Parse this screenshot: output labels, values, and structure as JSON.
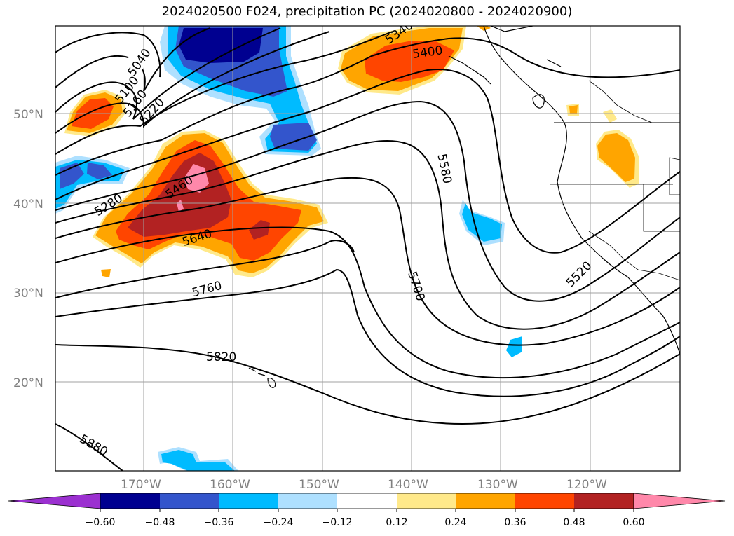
{
  "title": "2024020500 F024, precipitation PC (2024020800 - 2024020900)",
  "lat_labels": [
    "50°N",
    "40°N",
    "30°N",
    "20°N"
  ],
  "lon_labels": [
    "170°W",
    "160°W",
    "150°W",
    "140°W",
    "130°W",
    "120°W"
  ],
  "contour_labels": [
    "5040",
    "5100",
    "5160",
    "5220",
    "5280",
    "5400",
    "5460",
    "5580",
    "5640",
    "5700",
    "5760",
    "5820",
    "5880",
    "5520",
    "5340"
  ],
  "colorbar": {
    "ticks": [
      "−0.60",
      "−0.48",
      "−0.36",
      "−0.24",
      "−0.12",
      "0.12",
      "0.24",
      "0.36",
      "0.48",
      "0.60"
    ],
    "colors": {
      "under": "#9b30d0",
      "neg_060": "#000090",
      "neg_048": "#3355cc",
      "neg_036": "#00bbff",
      "neg_024": "#aee0ff",
      "neutral": "#ffffff",
      "pos_012": "#ffe98a",
      "pos_024": "#ffa500",
      "pos_036": "#ff4500",
      "pos_048": "#b22222",
      "over": "#ff88aa"
    }
  }
}
